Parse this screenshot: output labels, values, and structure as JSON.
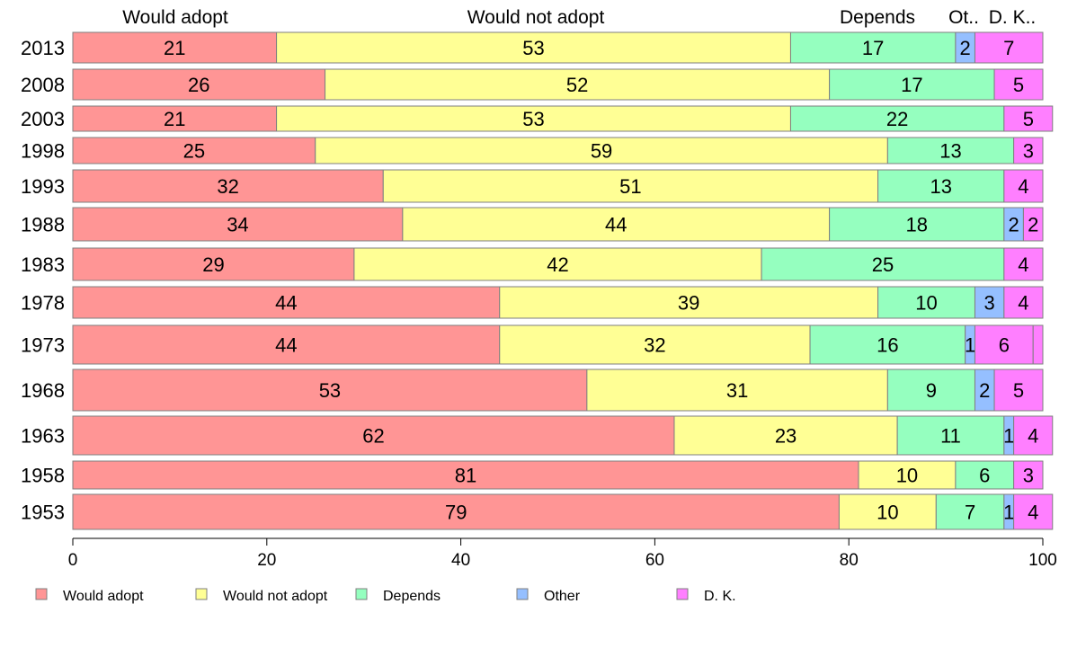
{
  "chart_data": {
    "type": "bar",
    "orientation": "horizontal",
    "stacked": true,
    "categories": [
      "2013",
      "2008",
      "2003",
      "1998",
      "1993",
      "1988",
      "1983",
      "1978",
      "1973",
      "1968",
      "1963",
      "1958",
      "1953"
    ],
    "series": [
      {
        "name": "Would adopt",
        "color": "#FF9595",
        "values": [
          21,
          26,
          21,
          25,
          32,
          34,
          29,
          44,
          44,
          53,
          62,
          81,
          79
        ]
      },
      {
        "name": "Would not adopt",
        "color": "#FFFF95",
        "values": [
          53,
          52,
          53,
          59,
          51,
          44,
          42,
          39,
          32,
          31,
          23,
          10,
          10
        ]
      },
      {
        "name": "Depends",
        "color": "#95FFBF",
        "values": [
          17,
          17,
          22,
          13,
          13,
          18,
          25,
          10,
          16,
          9,
          11,
          6,
          7
        ]
      },
      {
        "name": "Other",
        "color": "#95BFFF",
        "values": [
          2,
          0,
          0,
          0,
          0,
          2,
          0,
          3,
          1,
          2,
          1,
          0,
          1
        ]
      },
      {
        "name": "D. K.",
        "color": "#FF7FFF",
        "values": [
          7,
          5,
          5,
          3,
          4,
          2,
          4,
          4,
          6,
          5,
          4,
          3,
          4
        ]
      }
    ],
    "top_labels": [
      "Would adopt",
      "Would not adopt",
      "Depends",
      "Ot..",
      "D. K.."
    ],
    "xlim": [
      0,
      100
    ],
    "xticks": [
      "0",
      "20",
      "40",
      "60",
      "80",
      "100"
    ],
    "grid": false,
    "legend_position": "bottom"
  }
}
